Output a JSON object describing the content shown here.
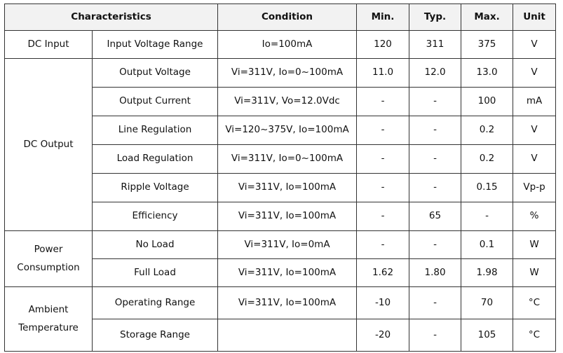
{
  "header": {
    "characteristics": "Characteristics",
    "condition": "Condition",
    "min": "Min.",
    "typ": "Typ.",
    "max": "Max.",
    "unit": "Unit"
  },
  "groups": {
    "dc_input": "DC Input",
    "dc_output": "DC Output",
    "power_consumption": "Power Consumption",
    "ambient_temperature": "Ambient Temperature"
  },
  "rows": [
    {
      "param": "Input Voltage Range",
      "condition": "Io=100mA",
      "min": "120",
      "typ": "311",
      "max": "375",
      "unit": "V"
    },
    {
      "param": "Output Voltage",
      "condition": "Vi=311V, Io=0~100mA",
      "min": "11.0",
      "typ": "12.0",
      "max": "13.0",
      "unit": "V"
    },
    {
      "param": "Output Current",
      "condition": "Vi=311V, Vo=12.0Vdc",
      "min": "-",
      "typ": "-",
      "max": "100",
      "unit": "mA"
    },
    {
      "param": "Line Regulation",
      "condition": "Vi=120~375V, Io=100mA",
      "min": "-",
      "typ": "-",
      "max": "0.2",
      "unit": "V"
    },
    {
      "param": "Load Regulation",
      "condition": "Vi=311V, Io=0~100mA",
      "min": "-",
      "typ": "-",
      "max": "0.2",
      "unit": "V"
    },
    {
      "param": "Ripple Voltage",
      "condition": "Vi=311V, Io=100mA",
      "min": "-",
      "typ": "-",
      "max": "0.15",
      "unit": "Vp-p"
    },
    {
      "param": "Efficiency",
      "condition": "Vi=311V, Io=100mA",
      "min": "-",
      "typ": "65",
      "max": "-",
      "unit": "%"
    },
    {
      "param": "No Load",
      "condition": "Vi=311V, Io=0mA",
      "min": "-",
      "typ": "-",
      "max": "0.1",
      "unit": "W"
    },
    {
      "param": "Full Load",
      "condition": "Vi=311V, Io=100mA",
      "min": "1.62",
      "typ": "1.80",
      "max": "1.98",
      "unit": "W"
    },
    {
      "param": "Operating Range",
      "condition": "Vi=311V, Io=100mA",
      "min": "-10",
      "typ": "-",
      "max": "70",
      "unit": "°C"
    },
    {
      "param": "Storage Range",
      "condition": "",
      "min": "-20",
      "typ": "-",
      "max": "105",
      "unit": "°C"
    }
  ]
}
